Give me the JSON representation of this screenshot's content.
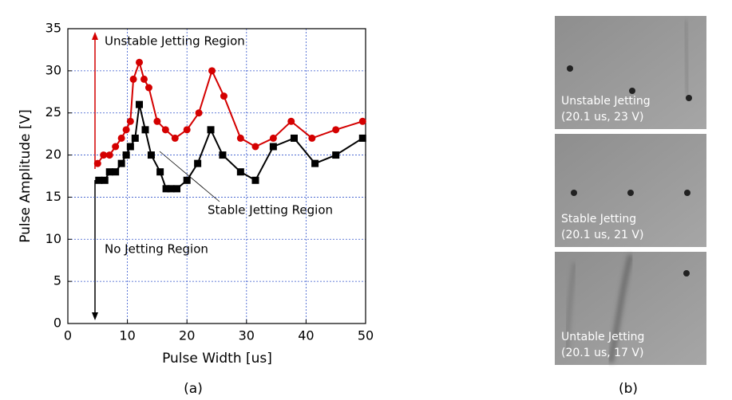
{
  "chart_data": {
    "type": "line",
    "xlabel": "Pulse Width [us]",
    "ylabel": "Pulse Amplitude [V]",
    "xlim": [
      0,
      50
    ],
    "xticks": [
      0,
      10,
      20,
      30,
      40,
      50
    ],
    "ylim": [
      0,
      35
    ],
    "yticks": [
      0,
      5,
      10,
      15,
      20,
      25,
      30,
      35
    ],
    "grid": true,
    "series": [
      {
        "name": "Unstable Jetting Region",
        "color": "#d40000",
        "marker": "circle",
        "x": [
          5,
          6,
          7,
          8,
          9,
          9.8,
          10.5,
          11,
          12,
          12.8,
          13.6,
          15,
          16.4,
          18,
          20,
          22,
          24.2,
          26.2,
          29,
          31.5,
          34.5,
          37.5,
          41,
          45,
          49.5
        ],
        "values": [
          19,
          20,
          20,
          21,
          22,
          23,
          24,
          29,
          31,
          29,
          28,
          24,
          23,
          22,
          23,
          25,
          30,
          27,
          22,
          21,
          22,
          24,
          22,
          23,
          24
        ]
      },
      {
        "name": "Stable Jetting Region",
        "color": "#000000",
        "marker": "square",
        "x": [
          5.2,
          6.2,
          7,
          8,
          9,
          9.8,
          10.5,
          11.3,
          12,
          13,
          14,
          15.5,
          16.5,
          17.3,
          18.3,
          20,
          21.8,
          24,
          26,
          29,
          31.5,
          34.5,
          38,
          41.5,
          45,
          49.5
        ],
        "values": [
          17,
          17,
          18,
          18,
          19,
          20,
          21,
          22,
          26,
          23,
          20,
          18,
          16,
          16,
          16,
          17,
          19,
          23,
          20,
          18,
          17,
          21,
          22,
          19,
          20,
          22
        ]
      }
    ],
    "annotations": [
      "Unstable Jetting Region",
      "Stable Jetting Region",
      "No Jetting Region"
    ],
    "caption": "(a)"
  },
  "photos": {
    "panels": [
      {
        "label": "Unstable Jetting",
        "condition": "(20.1 us, 23 V)"
      },
      {
        "label": "Stable Jetting",
        "condition": "(20.1 us, 21 V)"
      },
      {
        "label": "Untable Jetting",
        "condition": "(20.1 us, 17 V)"
      }
    ],
    "caption": "(b)"
  }
}
